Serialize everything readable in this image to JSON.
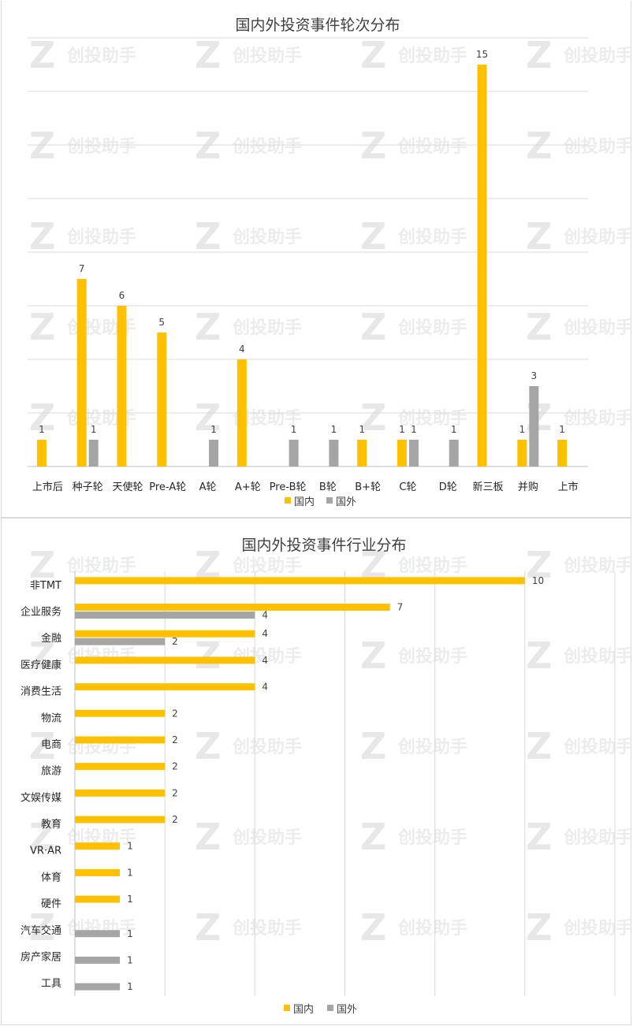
{
  "watermark": {
    "logo_letter": "Z",
    "text": "创投助手"
  },
  "colors": {
    "domestic": "#FFC000",
    "foreign": "#A5A5A5",
    "grid": "#D9D9D9",
    "axis": "#BFBFBF"
  },
  "chart_data": [
    {
      "type": "bar",
      "orientation": "vertical",
      "title": "国内外投资事件轮次分布",
      "categories": [
        "上市后",
        "种子轮",
        "天使轮",
        "Pre-A轮",
        "A轮",
        "A+轮",
        "Pre-B轮",
        "B轮",
        "B+轮",
        "C轮",
        "D轮",
        "新三板",
        "并购",
        "上市"
      ],
      "series": [
        {
          "name": "国内",
          "values": [
            1,
            7,
            6,
            5,
            null,
            4,
            null,
            null,
            1,
            1,
            null,
            15,
            1,
            1
          ]
        },
        {
          "name": "国外",
          "values": [
            null,
            1,
            null,
            null,
            1,
            null,
            1,
            1,
            null,
            1,
            1,
            null,
            3,
            null
          ]
        }
      ],
      "ylim": [
        0,
        16
      ],
      "grid": true,
      "legend_position": "bottom",
      "data_labels": true
    },
    {
      "type": "bar",
      "orientation": "horizontal",
      "title": "国内外投资事件行业分布",
      "categories": [
        "非TMT",
        "企业服务",
        "金融",
        "医疗健康",
        "消费生活",
        "物流",
        "电商",
        "旅游",
        "文娱传媒",
        "教育",
        "VR·AR",
        "体育",
        "硬件",
        "汽车交通",
        "房产家居",
        "工具"
      ],
      "series": [
        {
          "name": "国内",
          "values": [
            10,
            7,
            4,
            4,
            4,
            2,
            2,
            2,
            2,
            2,
            1,
            1,
            1,
            null,
            null,
            null
          ]
        },
        {
          "name": "国外",
          "values": [
            null,
            4,
            2,
            null,
            null,
            null,
            null,
            null,
            null,
            null,
            null,
            null,
            null,
            1,
            1,
            1
          ]
        }
      ],
      "xlim": [
        0,
        12
      ],
      "grid": true,
      "legend_position": "bottom",
      "data_labels": true
    }
  ]
}
